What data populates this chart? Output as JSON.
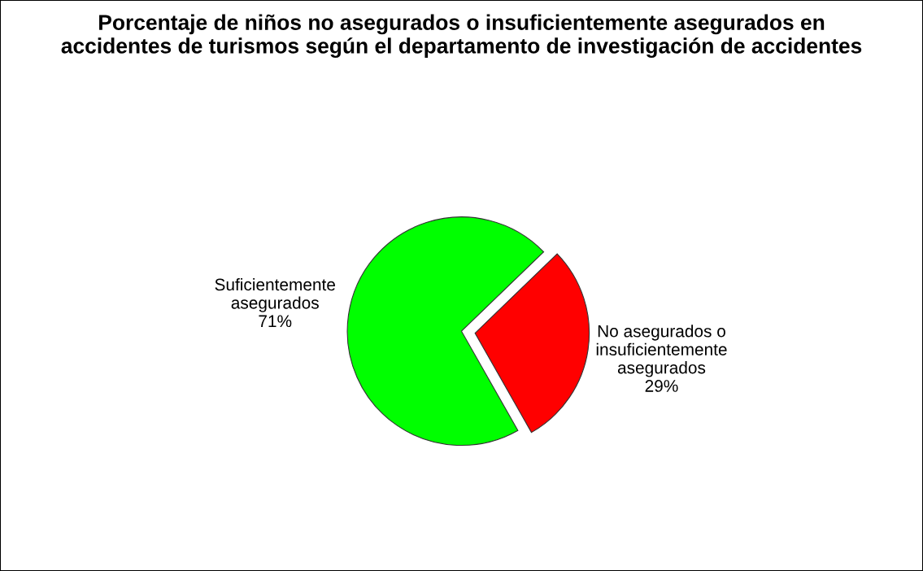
{
  "chart_data": {
    "type": "pie",
    "title": "Porcentaje de niños no asegurados o insuficientemente asegurados en accidentes de turismos según el departamento de investigación de accidentes",
    "categories": [
      "Suficientemente\nasegurados",
      "No asegurados o\ninsuficientemente\nasegurados"
    ],
    "values": [
      71,
      29
    ],
    "value_labels": [
      "71%",
      "29%"
    ],
    "colors": [
      "#00ff00",
      "#ff0000"
    ],
    "legend": false
  }
}
